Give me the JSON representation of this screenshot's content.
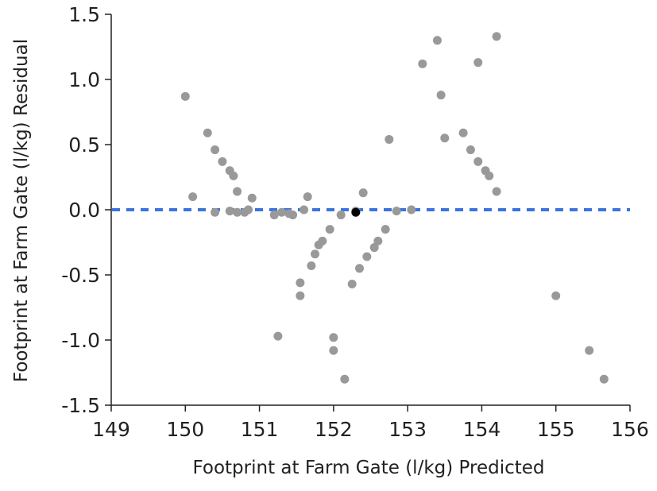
{
  "chart_data": {
    "type": "scatter",
    "xlabel": "Footprint at Farm Gate (l/kg) Predicted",
    "ylabel": "Footprint at Farm Gate (l/kg) Residual",
    "xlim": [
      149,
      156
    ],
    "ylim": [
      -1.5,
      1.5
    ],
    "x_ticks": [
      "149",
      "150",
      "151",
      "152",
      "153",
      "154",
      "155",
      "156"
    ],
    "y_ticks": [
      "1.5",
      "1.0",
      "0.5",
      "0.0",
      "-0.5",
      "-1.0",
      "-1.5"
    ],
    "grid": false,
    "reference_line": {
      "y": 0.0,
      "style": "dashed",
      "color": "#3b73e0"
    },
    "point_color": "#999999",
    "highlight_color": "#000000",
    "points": [
      [
        150.0,
        0.87
      ],
      [
        150.1,
        0.1
      ],
      [
        150.3,
        0.59
      ],
      [
        150.4,
        -0.02
      ],
      [
        150.4,
        0.46
      ],
      [
        150.5,
        0.37
      ],
      [
        150.6,
        0.3
      ],
      [
        150.6,
        -0.01
      ],
      [
        150.65,
        0.26
      ],
      [
        150.7,
        -0.02
      ],
      [
        150.7,
        0.14
      ],
      [
        150.8,
        -0.02
      ],
      [
        150.85,
        0.0
      ],
      [
        150.9,
        0.09
      ],
      [
        151.2,
        -0.04
      ],
      [
        151.25,
        -0.97
      ],
      [
        151.3,
        -0.02
      ],
      [
        151.4,
        -0.03
      ],
      [
        151.45,
        -0.04
      ],
      [
        151.55,
        -0.56
      ],
      [
        151.55,
        -0.66
      ],
      [
        151.6,
        -0.0
      ],
      [
        151.65,
        0.1
      ],
      [
        151.7,
        -0.43
      ],
      [
        151.75,
        -0.34
      ],
      [
        151.8,
        -0.27
      ],
      [
        151.85,
        -0.24
      ],
      [
        151.95,
        -0.15
      ],
      [
        152.0,
        -0.98
      ],
      [
        152.0,
        -1.08
      ],
      [
        152.1,
        -0.04
      ],
      [
        152.15,
        -1.3
      ],
      [
        152.25,
        -0.57
      ],
      [
        152.3,
        -0.01
      ],
      [
        152.35,
        -0.45
      ],
      [
        152.4,
        0.13
      ],
      [
        152.45,
        -0.36
      ],
      [
        152.55,
        -0.29
      ],
      [
        152.6,
        -0.24
      ],
      [
        152.7,
        -0.15
      ],
      [
        152.75,
        0.54
      ],
      [
        152.85,
        -0.01
      ],
      [
        153.05,
        0.0
      ],
      [
        153.2,
        1.12
      ],
      [
        153.4,
        1.3
      ],
      [
        153.45,
        0.88
      ],
      [
        153.5,
        0.55
      ],
      [
        153.75,
        0.59
      ],
      [
        153.85,
        0.46
      ],
      [
        153.95,
        1.13
      ],
      [
        153.95,
        0.37
      ],
      [
        154.05,
        0.3
      ],
      [
        154.1,
        0.26
      ],
      [
        154.2,
        1.33
      ],
      [
        154.2,
        0.14
      ],
      [
        155.0,
        -0.66
      ],
      [
        155.45,
        -1.08
      ],
      [
        155.65,
        -1.3
      ]
    ],
    "highlight_points": [
      [
        152.3,
        -0.02
      ]
    ]
  }
}
